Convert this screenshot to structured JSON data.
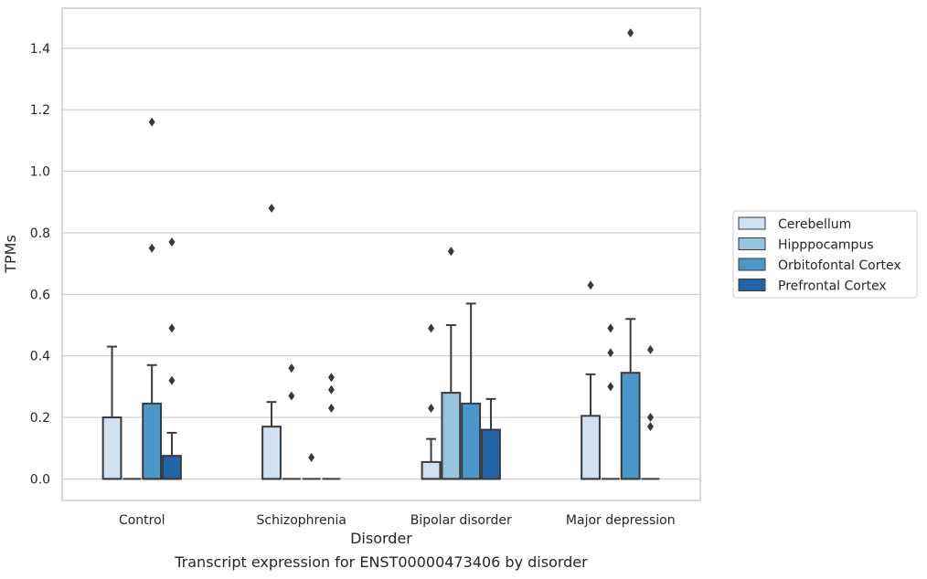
{
  "chart_data": {
    "type": "box",
    "title": "",
    "caption": "Transcript expression for ENST00000473406 by disorder",
    "xlabel": "Disorder",
    "ylabel": "TPMs",
    "ylim": [
      -0.07,
      1.53
    ],
    "yticks": [
      0.0,
      0.2,
      0.4,
      0.6,
      0.8,
      1.0,
      1.2,
      1.4
    ],
    "ytick_labels": [
      "0.0",
      "0.2",
      "0.4",
      "0.6",
      "0.8",
      "1.0",
      "1.2",
      "1.4"
    ],
    "grid": "y",
    "legend_position": "right",
    "categories": [
      "Control",
      "Schizophrenia",
      "Bipolar disorder",
      "Major depression"
    ],
    "series": [
      {
        "name": "Cerebellum",
        "color": "#d0e1f2",
        "boxes": [
          {
            "q1": 0.0,
            "median": 0.0,
            "q3": 0.2,
            "whisker_low": 0.0,
            "whisker_high": 0.43,
            "outliers": []
          },
          {
            "q1": 0.0,
            "median": 0.0,
            "q3": 0.17,
            "whisker_low": 0.0,
            "whisker_high": 0.25,
            "outliers": [
              0.88
            ]
          },
          {
            "q1": 0.0,
            "median": 0.0,
            "q3": 0.055,
            "whisker_low": 0.0,
            "whisker_high": 0.13,
            "outliers": [
              0.23,
              0.49
            ]
          },
          {
            "q1": 0.0,
            "median": 0.0,
            "q3": 0.205,
            "whisker_low": 0.0,
            "whisker_high": 0.34,
            "outliers": [
              0.63
            ]
          }
        ]
      },
      {
        "name": "Hipppocampus",
        "color": "#94c4df",
        "boxes": [
          {
            "q1": 0.0,
            "median": 0.0,
            "q3": 0.0,
            "whisker_low": 0.0,
            "whisker_high": 0.0,
            "outliers": []
          },
          {
            "q1": 0.0,
            "median": 0.0,
            "q3": 0.0,
            "whisker_low": 0.0,
            "whisker_high": 0.0,
            "outliers": [
              0.27,
              0.36
            ]
          },
          {
            "q1": 0.0,
            "median": 0.0,
            "q3": 0.28,
            "whisker_low": 0.0,
            "whisker_high": 0.5,
            "outliers": [
              0.74
            ]
          },
          {
            "q1": 0.0,
            "median": 0.0,
            "q3": 0.0,
            "whisker_low": 0.0,
            "whisker_high": 0.0,
            "outliers": [
              0.3,
              0.41,
              0.49
            ]
          }
        ]
      },
      {
        "name": "Orbitofontal Cortex",
        "color": "#4a98c9",
        "boxes": [
          {
            "q1": 0.0,
            "median": 0.0,
            "q3": 0.245,
            "whisker_low": 0.0,
            "whisker_high": 0.37,
            "outliers": [
              0.75,
              1.16
            ]
          },
          {
            "q1": 0.0,
            "median": 0.0,
            "q3": 0.0,
            "whisker_low": 0.0,
            "whisker_high": 0.0,
            "outliers": [
              0.07
            ]
          },
          {
            "q1": 0.0,
            "median": 0.0,
            "q3": 0.245,
            "whisker_low": 0.0,
            "whisker_high": 0.57,
            "outliers": []
          },
          {
            "q1": 0.0,
            "median": 0.0,
            "q3": 0.345,
            "whisker_low": 0.0,
            "whisker_high": 0.52,
            "outliers": [
              1.45
            ]
          }
        ]
      },
      {
        "name": "Prefrontal Cortex",
        "color": "#2363a8",
        "boxes": [
          {
            "q1": 0.0,
            "median": 0.0,
            "q3": 0.075,
            "whisker_low": 0.0,
            "whisker_high": 0.15,
            "outliers": [
              0.32,
              0.49,
              0.77
            ]
          },
          {
            "q1": 0.0,
            "median": 0.0,
            "q3": 0.0,
            "whisker_low": 0.0,
            "whisker_high": 0.0,
            "outliers": [
              0.23,
              0.29,
              0.33
            ]
          },
          {
            "q1": 0.0,
            "median": 0.0,
            "q3": 0.16,
            "whisker_low": 0.0,
            "whisker_high": 0.26,
            "outliers": []
          },
          {
            "q1": 0.0,
            "median": 0.0,
            "q3": 0.0,
            "whisker_low": 0.0,
            "whisker_high": 0.0,
            "outliers": [
              0.17,
              0.2,
              0.42
            ]
          }
        ]
      }
    ]
  }
}
